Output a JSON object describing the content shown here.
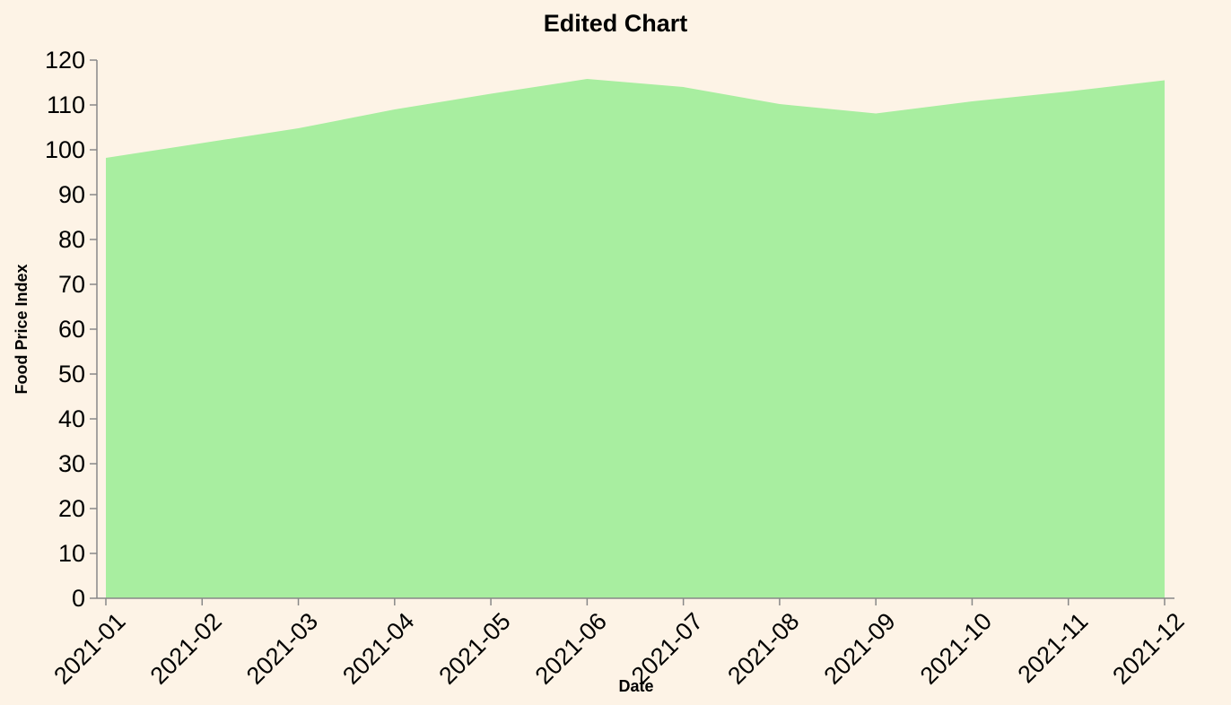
{
  "chart_data": {
    "type": "area",
    "title": "Edited Chart",
    "xlabel": "Date",
    "ylabel": "Food Price Index",
    "x": [
      "2021-01",
      "2021-02",
      "2021-03",
      "2021-04",
      "2021-05",
      "2021-06",
      "2021-07",
      "2021-08",
      "2021-09",
      "2021-10",
      "2021-11",
      "2021-12"
    ],
    "values": [
      98.2,
      101.5,
      104.8,
      109.0,
      112.5,
      115.8,
      114.0,
      110.2,
      108.1,
      110.8,
      113.0,
      115.5
    ],
    "ylim": [
      0,
      120
    ],
    "yticks": [
      0,
      10,
      20,
      30,
      40,
      50,
      60,
      70,
      80,
      90,
      100,
      110,
      120
    ],
    "area_color": "#a8eea0",
    "grid": false
  }
}
